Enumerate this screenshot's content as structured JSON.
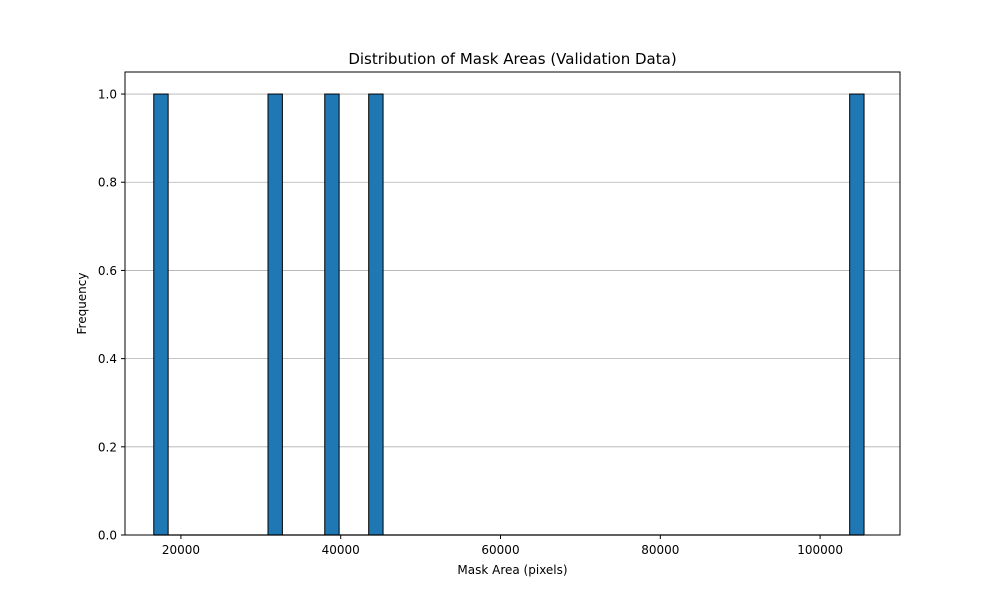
{
  "chart_data": {
    "type": "bar",
    "title": "Distribution of Mask Areas (Validation Data)",
    "xlabel": "Mask Area (pixels)",
    "ylabel": "Frequency",
    "xlim": [
      13000,
      110000
    ],
    "ylim": [
      0,
      1.05
    ],
    "x_ticks": [
      20000,
      40000,
      60000,
      80000,
      100000
    ],
    "y_ticks": [
      0.0,
      0.2,
      0.4,
      0.6,
      0.8,
      1.0
    ],
    "x_tick_labels": [
      "20000",
      "40000",
      "60000",
      "80000",
      "100000"
    ],
    "y_tick_labels": [
      "0.0",
      "0.2",
      "0.4",
      "0.6",
      "0.8",
      "1.0"
    ],
    "bins": [
      {
        "start": 16600,
        "end": 18400,
        "count": 1
      },
      {
        "start": 30900,
        "end": 32700,
        "count": 1
      },
      {
        "start": 38000,
        "end": 39800,
        "count": 1
      },
      {
        "start": 43500,
        "end": 45300,
        "count": 1
      },
      {
        "start": 103700,
        "end": 105500,
        "count": 1
      }
    ],
    "nbins": 50,
    "bar_color": "#1f77b4",
    "edge_color": "#000000",
    "grid": "y",
    "legend": "none"
  }
}
